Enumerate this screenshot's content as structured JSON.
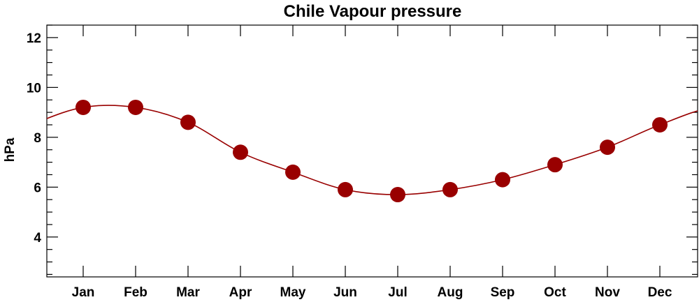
{
  "chart_data": {
    "type": "line",
    "title": "Chile Vapour pressure",
    "ylabel": "hPa",
    "xlabel": "",
    "categories": [
      "Jan",
      "Feb",
      "Mar",
      "Apr",
      "May",
      "Jun",
      "Jul",
      "Aug",
      "Sep",
      "Oct",
      "Nov",
      "Dec"
    ],
    "values": [
      9.2,
      9.2,
      8.6,
      7.4,
      6.6,
      5.9,
      5.7,
      5.9,
      6.3,
      6.9,
      7.6,
      8.5
    ],
    "ylim": [
      2.4,
      12.5
    ],
    "yticks": [
      4,
      6,
      8,
      10,
      12
    ],
    "y_minor_step": 0.5,
    "grid": false,
    "marker_color": "#990000",
    "line_color": "#990000"
  }
}
